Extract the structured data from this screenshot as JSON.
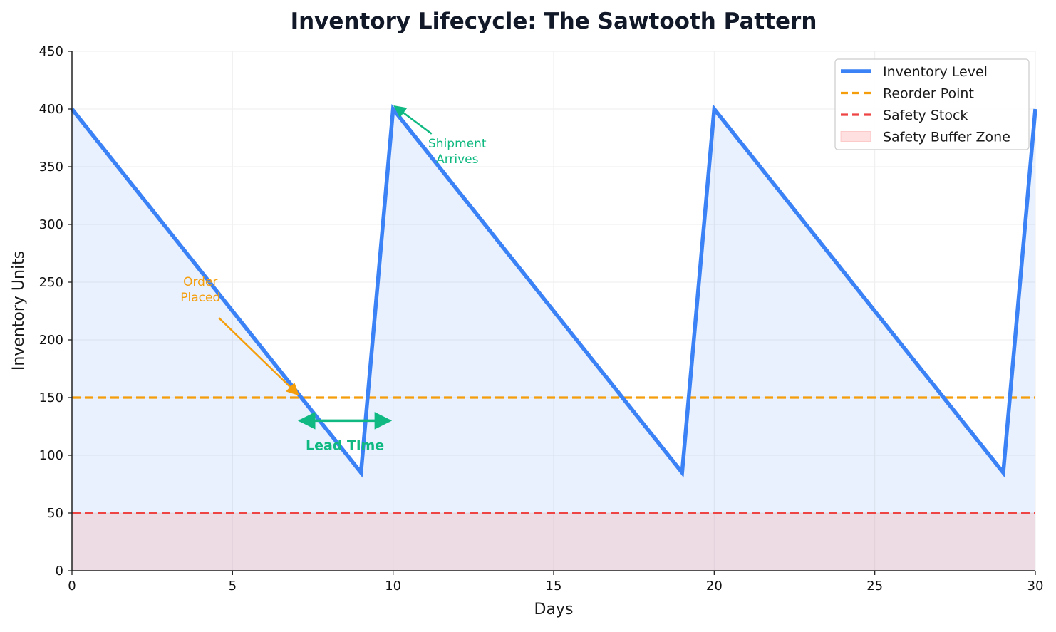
{
  "chart_data": {
    "type": "line",
    "title": "Inventory Lifecycle: The Sawtooth Pattern",
    "xlabel": "Days",
    "ylabel": "Inventory Units",
    "xlim": [
      0,
      30
    ],
    "ylim": [
      0,
      450
    ],
    "xticks": [
      0,
      5,
      10,
      15,
      20,
      25,
      30
    ],
    "yticks": [
      0,
      50,
      100,
      150,
      200,
      250,
      300,
      350,
      400,
      450
    ],
    "grid": true,
    "legend_position": "top-right",
    "series": [
      {
        "name": "Inventory Level",
        "style": "solid",
        "color": "#3b82f6",
        "x": [
          0,
          9,
          10,
          19,
          20,
          29,
          30
        ],
        "y": [
          400,
          85,
          400,
          85,
          400,
          85,
          400
        ]
      },
      {
        "name": "Reorder Point",
        "style": "dashed",
        "color": "#f59e0b",
        "x": [
          0,
          30
        ],
        "y": [
          150,
          150
        ]
      },
      {
        "name": "Safety Stock",
        "style": "dashed",
        "color": "#ef4444",
        "x": [
          0,
          30
        ],
        "y": [
          50,
          50
        ]
      }
    ],
    "areas": [
      {
        "name": "Safety Buffer Zone",
        "color": "#fca5a5",
        "y_from": 0,
        "y_to": 50
      }
    ],
    "annotations": [
      {
        "text_lines": [
          "Order",
          "Placed"
        ],
        "color": "#f59e0b",
        "text_at": [
          4,
          240
        ],
        "arrow_to": [
          7,
          150
        ]
      },
      {
        "text_lines": [
          "Shipment",
          "Arrives"
        ],
        "color": "#10b981",
        "text_at": [
          12,
          360
        ],
        "arrow_to": [
          10,
          400
        ]
      }
    ],
    "lead_time": {
      "label": "Lead Time",
      "color": "#10b981",
      "x_from": 7,
      "x_to": 10,
      "y": 130
    }
  }
}
